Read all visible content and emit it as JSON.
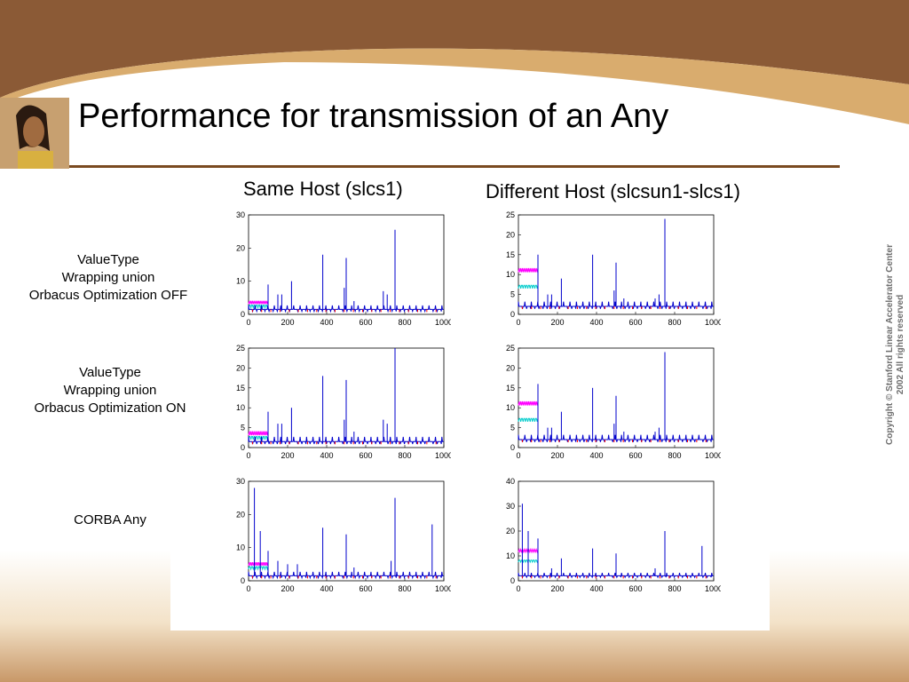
{
  "slide": {
    "title": "Performance for transmission of an Any",
    "colors": {
      "brand_brown": "#8b5a36",
      "tan": "#d9ac6e",
      "line1": "#0000cc",
      "line2": "#ff00ff",
      "line3": "#00cccc",
      "line4": "#ff0000"
    }
  },
  "columns": [
    "Same Host (slcs1)",
    "Different Host (slcsun1-slcs1)"
  ],
  "rows": [
    {
      "lines": [
        "ValueType",
        "Wrapping union",
        "Orbacus Optimization OFF"
      ]
    },
    {
      "lines": [
        "ValueType",
        "Wrapping union",
        "Orbacus Optimization ON"
      ]
    },
    {
      "lines": [
        "CORBA Any"
      ]
    }
  ],
  "copyright": {
    "line1": "Copyright  © Stanford Linear Accelerator Center",
    "line2": "2002 All rights reserved"
  },
  "chart_data": [
    {
      "type": "line",
      "xlim": [
        0,
        1000
      ],
      "ylim": [
        0,
        30
      ],
      "yticks": [
        0,
        10,
        20,
        30
      ],
      "xticks": [
        0,
        200,
        400,
        600,
        800,
        1000
      ],
      "base": 1.5,
      "spikes": [
        [
          100,
          9
        ],
        [
          150,
          6
        ],
        [
          170,
          6
        ],
        [
          220,
          10
        ],
        [
          380,
          18
        ],
        [
          490,
          8
        ],
        [
          500,
          17
        ],
        [
          540,
          4
        ],
        [
          690,
          7
        ],
        [
          710,
          6
        ],
        [
          750,
          25.5
        ]
      ],
      "magenta": {
        "x": [
          0,
          100
        ],
        "y": 3.5
      },
      "cyan": {
        "x": [
          0,
          100
        ],
        "y": 2.5
      }
    },
    {
      "type": "line",
      "xlim": [
        0,
        1000
      ],
      "ylim": [
        0,
        25
      ],
      "yticks": [
        0,
        5,
        10,
        15,
        20,
        25
      ],
      "xticks": [
        0,
        200,
        400,
        600,
        800,
        1000
      ],
      "base": 2,
      "spikes": [
        [
          100,
          15
        ],
        [
          150,
          5
        ],
        [
          170,
          5
        ],
        [
          220,
          9
        ],
        [
          380,
          15
        ],
        [
          490,
          6
        ],
        [
          500,
          13
        ],
        [
          540,
          4
        ],
        [
          700,
          4
        ],
        [
          720,
          5
        ],
        [
          750,
          24
        ]
      ],
      "magenta": {
        "x": [
          0,
          100
        ],
        "y": 11
      },
      "cyan": {
        "x": [
          0,
          100
        ],
        "y": 7
      }
    },
    {
      "type": "line",
      "xlim": [
        0,
        1000
      ],
      "ylim": [
        0,
        25
      ],
      "yticks": [
        0,
        5,
        10,
        15,
        20,
        25
      ],
      "xticks": [
        0,
        200,
        400,
        600,
        800,
        1000
      ],
      "base": 1.5,
      "spikes": [
        [
          100,
          9
        ],
        [
          150,
          6
        ],
        [
          170,
          6
        ],
        [
          220,
          10
        ],
        [
          380,
          18
        ],
        [
          490,
          7
        ],
        [
          500,
          17
        ],
        [
          540,
          4
        ],
        [
          690,
          7
        ],
        [
          710,
          6
        ],
        [
          750,
          25
        ]
      ],
      "magenta": {
        "x": [
          0,
          100
        ],
        "y": 3.5
      },
      "cyan": {
        "x": [
          0,
          100
        ],
        "y": 2.5
      }
    },
    {
      "type": "line",
      "xlim": [
        0,
        1000
      ],
      "ylim": [
        0,
        25
      ],
      "yticks": [
        0,
        5,
        10,
        15,
        20,
        25
      ],
      "xticks": [
        0,
        200,
        400,
        600,
        800,
        1000
      ],
      "base": 2,
      "spikes": [
        [
          100,
          16
        ],
        [
          150,
          5
        ],
        [
          170,
          5
        ],
        [
          220,
          9
        ],
        [
          380,
          15
        ],
        [
          490,
          6
        ],
        [
          500,
          13
        ],
        [
          540,
          4
        ],
        [
          700,
          4
        ],
        [
          720,
          5
        ],
        [
          750,
          24
        ]
      ],
      "magenta": {
        "x": [
          0,
          100
        ],
        "y": 11
      },
      "cyan": {
        "x": [
          0,
          100
        ],
        "y": 7
      }
    },
    {
      "type": "line",
      "xlim": [
        0,
        1000
      ],
      "ylim": [
        0,
        30
      ],
      "yticks": [
        0,
        10,
        20,
        30
      ],
      "xticks": [
        0,
        200,
        400,
        600,
        800,
        1000
      ],
      "base": 1.5,
      "spikes": [
        [
          30,
          28
        ],
        [
          60,
          15
        ],
        [
          100,
          9
        ],
        [
          150,
          6
        ],
        [
          200,
          5
        ],
        [
          250,
          5
        ],
        [
          380,
          16
        ],
        [
          500,
          14
        ],
        [
          540,
          4
        ],
        [
          730,
          6
        ],
        [
          750,
          25
        ],
        [
          940,
          17
        ]
      ],
      "magenta": {
        "x": [
          0,
          100
        ],
        "y": 5
      },
      "cyan": {
        "x": [
          0,
          100
        ],
        "y": 4
      }
    },
    {
      "type": "line",
      "xlim": [
        0,
        1000
      ],
      "ylim": [
        0,
        40
      ],
      "yticks": [
        0,
        10,
        20,
        30,
        40
      ],
      "xticks": [
        0,
        200,
        400,
        600,
        800,
        1000
      ],
      "base": 2,
      "spikes": [
        [
          20,
          31
        ],
        [
          50,
          20
        ],
        [
          100,
          17
        ],
        [
          170,
          5
        ],
        [
          220,
          9
        ],
        [
          380,
          13
        ],
        [
          500,
          11
        ],
        [
          700,
          5
        ],
        [
          750,
          20
        ],
        [
          940,
          14
        ]
      ],
      "magenta": {
        "x": [
          0,
          100
        ],
        "y": 12
      },
      "cyan": {
        "x": [
          0,
          100
        ],
        "y": 8
      }
    }
  ]
}
